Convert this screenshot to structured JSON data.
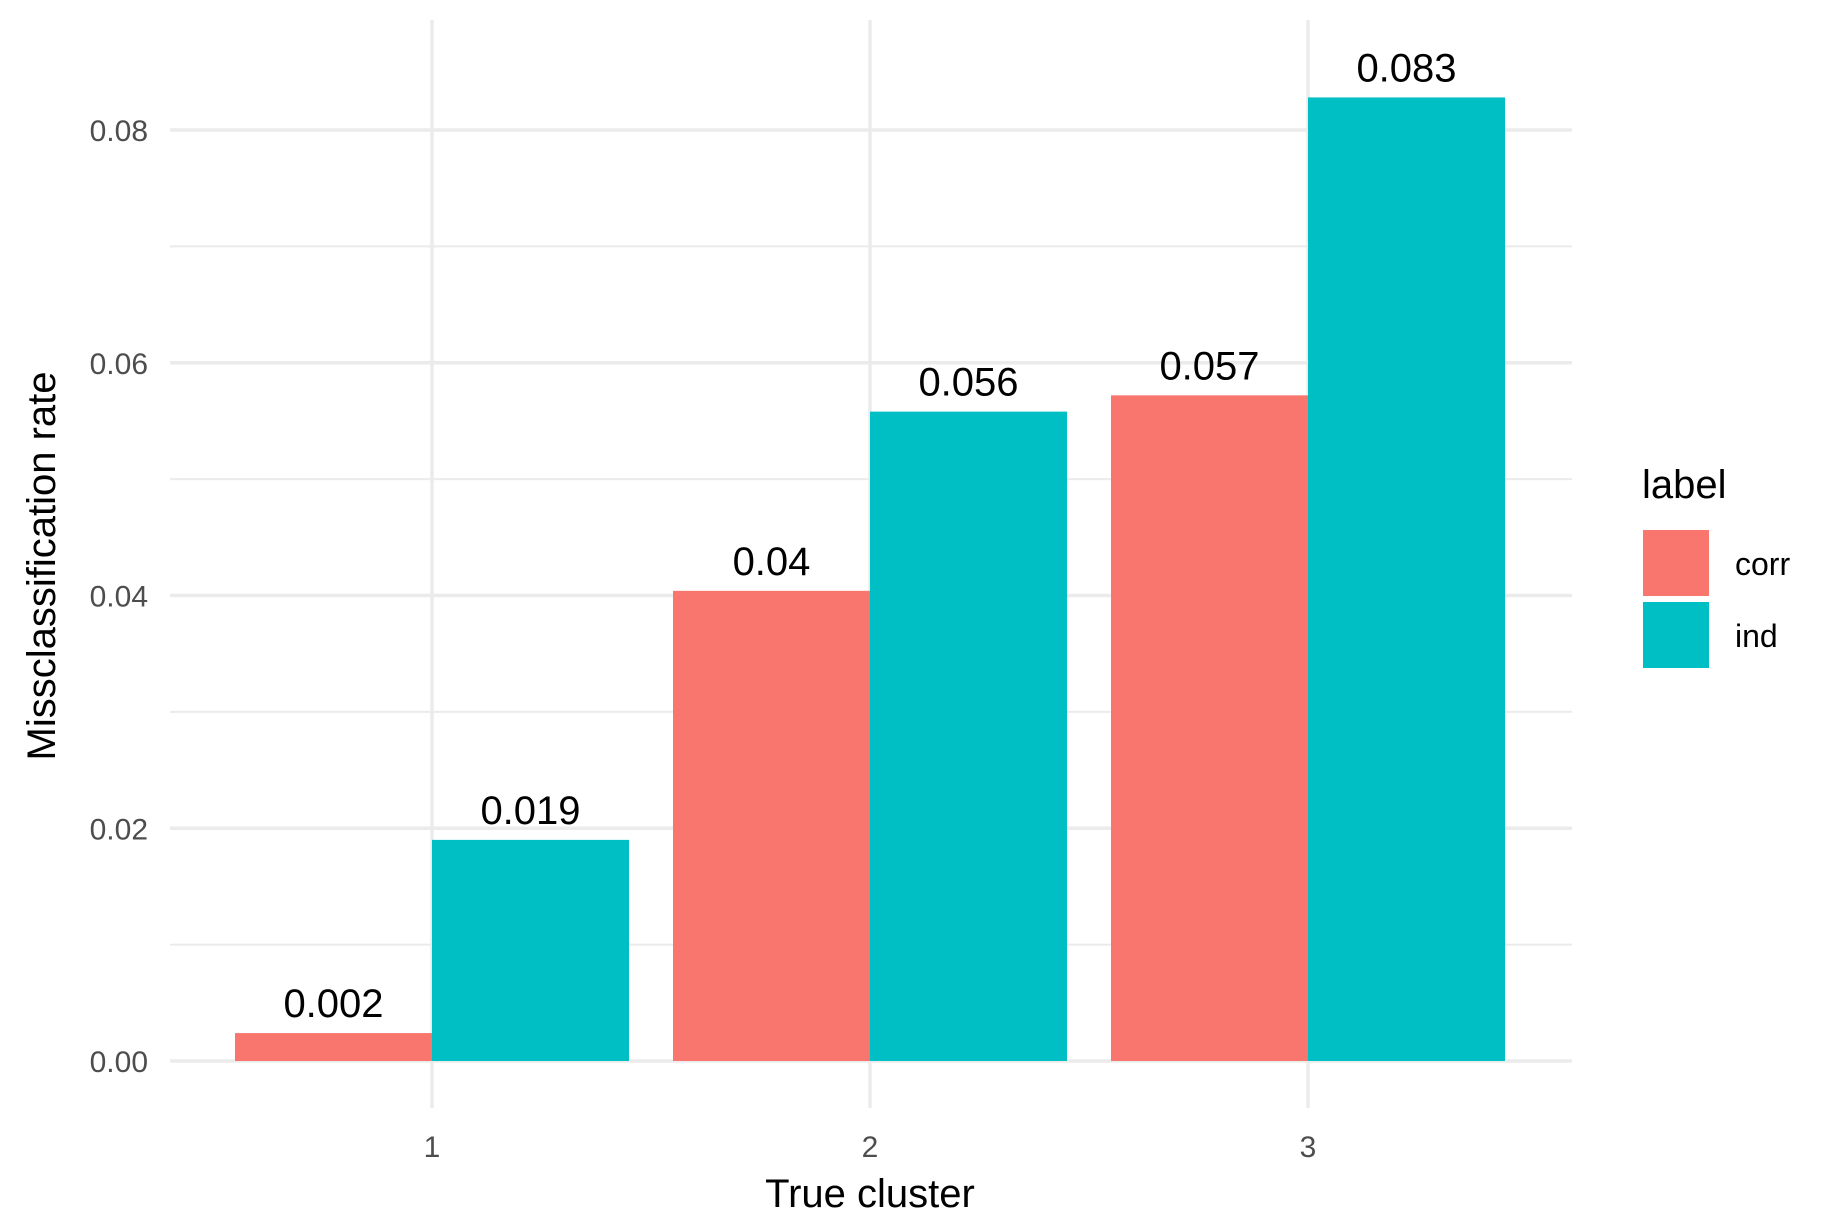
{
  "chart_data": {
    "type": "bar",
    "title": "",
    "xlabel": "True cluster",
    "ylabel": "Missclassification rate",
    "categories": [
      "1",
      "2",
      "3"
    ],
    "series": [
      {
        "name": "corr",
        "color": "#F8766D",
        "values": [
          0.0024,
          0.0404,
          0.0572
        ],
        "labels": [
          "0.002",
          "0.04",
          "0.057"
        ]
      },
      {
        "name": "ind",
        "color": "#00BFC4",
        "values": [
          0.019,
          0.0558,
          0.0828
        ],
        "labels": [
          "0.019",
          "0.056",
          "0.083"
        ]
      }
    ],
    "ylim": [
      0,
      0.088
    ],
    "yticks": [
      0,
      0.02,
      0.04,
      0.06,
      0.08
    ],
    "ytick_labels": [
      "0.00",
      "0.02",
      "0.04",
      "0.06",
      "0.08"
    ],
    "grid": true,
    "legend": {
      "title": "label",
      "position": "right"
    }
  }
}
